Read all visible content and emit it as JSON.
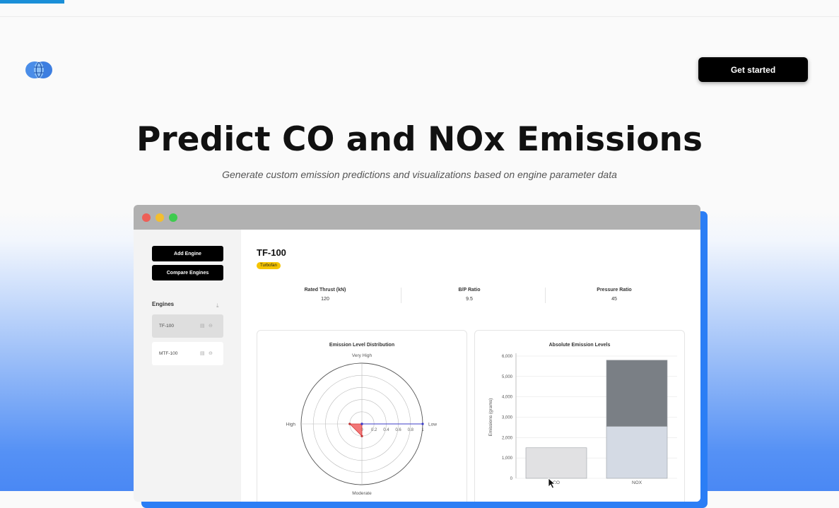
{
  "header": {
    "cta_label": "Get started"
  },
  "hero": {
    "title": "Predict CO and NOx Emissions",
    "subtitle": "Generate custom emission predictions and visualizations based on engine parameter data"
  },
  "app": {
    "sidebar": {
      "add_engine": "Add Engine",
      "compare_engines": "Compare Engines",
      "engines_heading": "Engines",
      "engines": [
        {
          "name": "TF-100"
        },
        {
          "name": "MTF-100"
        }
      ]
    },
    "engine": {
      "name": "TF-100",
      "type": "Turbofan",
      "metrics": [
        {
          "label": "Rated Thrust (kN)",
          "value": "120"
        },
        {
          "label": "B/P Ratio",
          "value": "9.5"
        },
        {
          "label": "Pressure Ratio",
          "value": "45"
        }
      ]
    },
    "colors": {
      "accent": "#f5c400",
      "window_shadow": "#2b7ef5",
      "titlebar": "#b1b1b1"
    }
  },
  "chart_data": [
    {
      "type": "radar",
      "title": "Emission Level Distribution",
      "axes": [
        "Very High",
        "Low",
        "Moderate",
        "High"
      ],
      "radial_ticks": [
        "0",
        "0.2",
        "0.4",
        "0.6",
        "0.8",
        "1"
      ],
      "series": [
        {
          "values": [
            0,
            0,
            0.2,
            0.2
          ],
          "color": "#f06060"
        },
        {
          "values": [
            0,
            1,
            0,
            0
          ],
          "color": "#3c3cc8"
        }
      ]
    },
    {
      "type": "bar",
      "title": "Absolute Emission Levels",
      "categories": [
        "CO",
        "NOX"
      ],
      "ylabel": "Emissions (grams)",
      "ylim": [
        0,
        6000
      ],
      "yticks": [
        "0",
        "1,000",
        "2,000",
        "3,000",
        "4,000",
        "5,000",
        "6,000"
      ],
      "stacked": true,
      "series": [
        {
          "values": [
            1500,
            2550
          ],
          "color": "#d4dae4"
        },
        {
          "values": [
            0,
            3250
          ],
          "color": "#7a7f85"
        }
      ]
    }
  ]
}
